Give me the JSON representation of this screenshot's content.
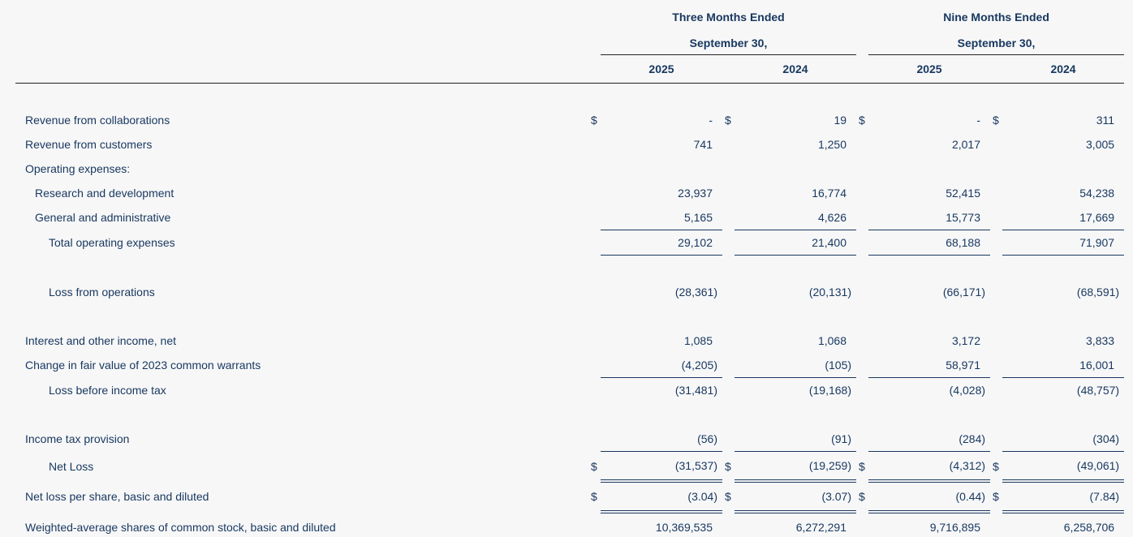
{
  "page": {
    "background_color": "#f7f7f8",
    "text_color": "#17375e",
    "rule_color": "#222222",
    "column_rule_color": "#17375e"
  },
  "table": {
    "currency_symbol": "$",
    "groups": [
      {
        "title": "Three Months Ended",
        "subtitle": "September 30,",
        "years": [
          "2025",
          "2024"
        ]
      },
      {
        "title": "Nine Months Ended",
        "subtitle": "September 30,",
        "years": [
          "2025",
          "2024"
        ]
      }
    ],
    "rows": [
      {
        "key": "revenue-collaborations",
        "label": "Revenue from collaborations",
        "indent": 0,
        "dollar": true,
        "values": [
          "-",
          "19",
          "-",
          "311"
        ]
      },
      {
        "key": "revenue-customers",
        "label": "Revenue from customers",
        "indent": 0,
        "values": [
          "741",
          "1,250",
          "2,017",
          "3,005"
        ]
      },
      {
        "key": "operating-expenses-heading",
        "label": "Operating expenses:",
        "indent": 0,
        "values": [
          "",
          "",
          "",
          ""
        ]
      },
      {
        "key": "research-and-development",
        "label": "Research and development",
        "indent": 1,
        "values": [
          "23,937",
          "16,774",
          "52,415",
          "54,238"
        ]
      },
      {
        "key": "general-and-administrative",
        "label": "General and administrative",
        "indent": 1,
        "values": [
          "5,165",
          "4,626",
          "15,773",
          "17,669"
        ],
        "border": "single"
      },
      {
        "key": "total-operating-expenses",
        "label": "Total operating expenses",
        "indent": 2,
        "values": [
          "29,102",
          "21,400",
          "68,188",
          "71,907"
        ],
        "border": "single"
      },
      {
        "key": "spacer-1",
        "spacer": true
      },
      {
        "key": "loss-from-operations",
        "label": "Loss from operations",
        "indent": 2,
        "values": [
          "(28,361)",
          "(20,131)",
          "(66,171)",
          "(68,591)"
        ]
      },
      {
        "key": "spacer-2",
        "spacer": true
      },
      {
        "key": "interest-and-other-income",
        "label": "Interest and other income, net",
        "indent": 0,
        "values": [
          "1,085",
          "1,068",
          "3,172",
          "3,833"
        ]
      },
      {
        "key": "change-fair-value-warrants",
        "label": "Change in fair value of 2023 common warrants",
        "indent": 0,
        "values": [
          "(4,205)",
          "(105)",
          "58,971",
          "16,001"
        ],
        "border": "single"
      },
      {
        "key": "loss-before-income-tax",
        "label": "Loss before income tax",
        "indent": 2,
        "values": [
          "(31,481)",
          "(19,168)",
          "(4,028)",
          "(48,757)"
        ]
      },
      {
        "key": "spacer-3",
        "spacer": true
      },
      {
        "key": "income-tax-provision",
        "label": "Income tax provision",
        "indent": 0,
        "values": [
          "(56)",
          "(91)",
          "(284)",
          "(304)"
        ],
        "border": "single"
      },
      {
        "key": "net-loss",
        "label": "Net Loss",
        "indent": 2,
        "dollar": true,
        "values": [
          "(31,537)",
          "(19,259)",
          "(4,312)",
          "(49,061)"
        ],
        "border": "double"
      },
      {
        "key": "net-loss-per-share",
        "label": "Net loss per share, basic and diluted",
        "indent": 0,
        "dollar": true,
        "values": [
          "(3.04)",
          "(3.07)",
          "(0.44)",
          "(7.84)"
        ],
        "border": "double"
      },
      {
        "key": "weighted-average-shares",
        "label": "Weighted-average shares of common stock, basic and diluted",
        "indent": 0,
        "values": [
          "10,369,535",
          "6,272,291",
          "9,716,895",
          "6,258,706"
        ],
        "border": "double"
      }
    ]
  }
}
